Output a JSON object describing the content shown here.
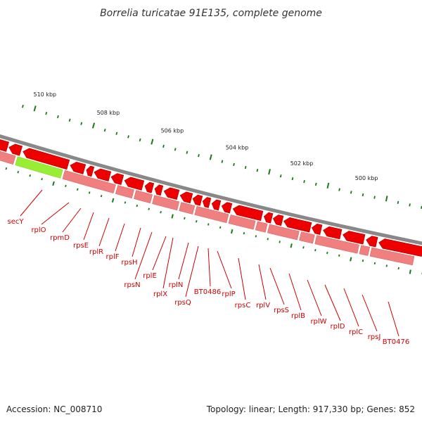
{
  "title": "Borrelia turicatae 91E135, complete genome",
  "footer": {
    "accession": "Accession: NC_008710",
    "summary": "Topology: linear; Length: 917,330 bp; Genes: 852"
  },
  "kbp_labels": [
    "510 kbp",
    "508 kbp",
    "506 kbp",
    "504 kbp",
    "502 kbp",
    "500 kbp"
  ],
  "genes": [
    "secY",
    "rplO",
    "rpmD",
    "rpsE",
    "rplR",
    "rplF",
    "rpsH",
    "rpsN",
    "rplE",
    "rplX",
    "rplN",
    "rpsQ",
    "BT0486",
    "rplP",
    "rpsC",
    "rplV",
    "rpsS",
    "rplB",
    "rplW",
    "rplD",
    "rplC",
    "rpsJ",
    "BT0476"
  ],
  "colors": {
    "cds": "#ee0000",
    "cds_edge": "#aa0000",
    "gene_track": "#f08080",
    "highlight": "#99ee33",
    "backbone": "#888888",
    "tick": "#1a7a1a",
    "label": "#cc0000"
  }
}
